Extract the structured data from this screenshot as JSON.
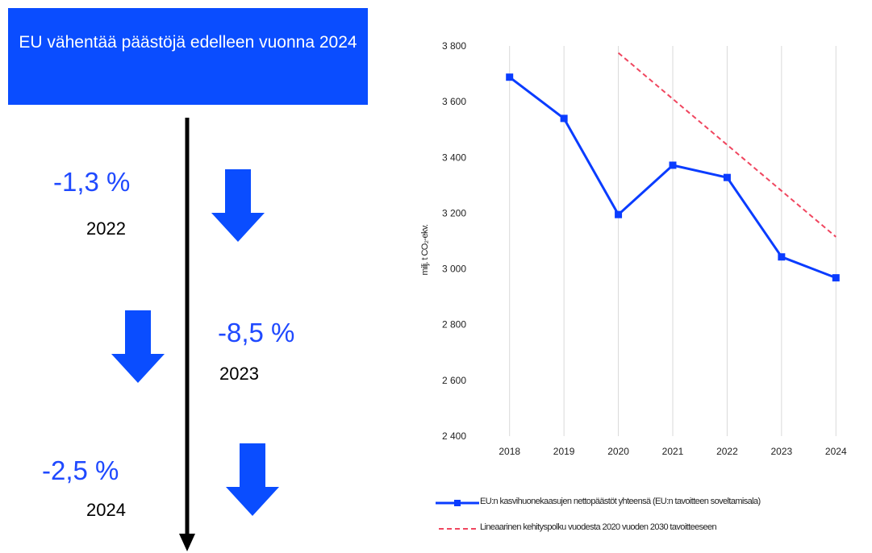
{
  "title_box": {
    "text": "EU vähentää päästöjä edelleen vuonna 2024"
  },
  "changes": [
    {
      "percent": "-1,3 %",
      "year": "2022"
    },
    {
      "percent": "-8,5 %",
      "year": "2023"
    },
    {
      "percent": "-2,5 %",
      "year": "2024"
    }
  ],
  "colors": {
    "title_bg": "#0a4dff",
    "percent_text": "#1f49ff",
    "arrow": "#0a4dff",
    "series_line": "#0a3cff",
    "target_line": "#f0465f"
  },
  "chart_data": {
    "type": "line",
    "ylabel": "milj. t CO₂-ekv.",
    "ylim": [
      2400,
      3800
    ],
    "yticks": [
      "2 400",
      "2 600",
      "2 800",
      "3 000",
      "3 200",
      "3 400",
      "3 600",
      "3 800"
    ],
    "categories": [
      "2018",
      "2019",
      "2020",
      "2021",
      "2022",
      "2023",
      "2024"
    ],
    "grid": "vertical",
    "legend_position": "bottom",
    "series": [
      {
        "name": "EU:n kasvihuonekaasujen nettopäästöt yhteensä (EU:n tavoitteen soveltamisala)",
        "style": "solid-marker",
        "values": [
          3688,
          3540,
          3195,
          3372,
          3328,
          3043,
          2968
        ]
      },
      {
        "name": "Lineaarinen kehityspolku vuodesta 2020 vuoden 2030 tavoitteeseen",
        "style": "dashed",
        "values": [
          null,
          null,
          3775,
          3610,
          3445,
          3280,
          3115
        ]
      }
    ]
  }
}
